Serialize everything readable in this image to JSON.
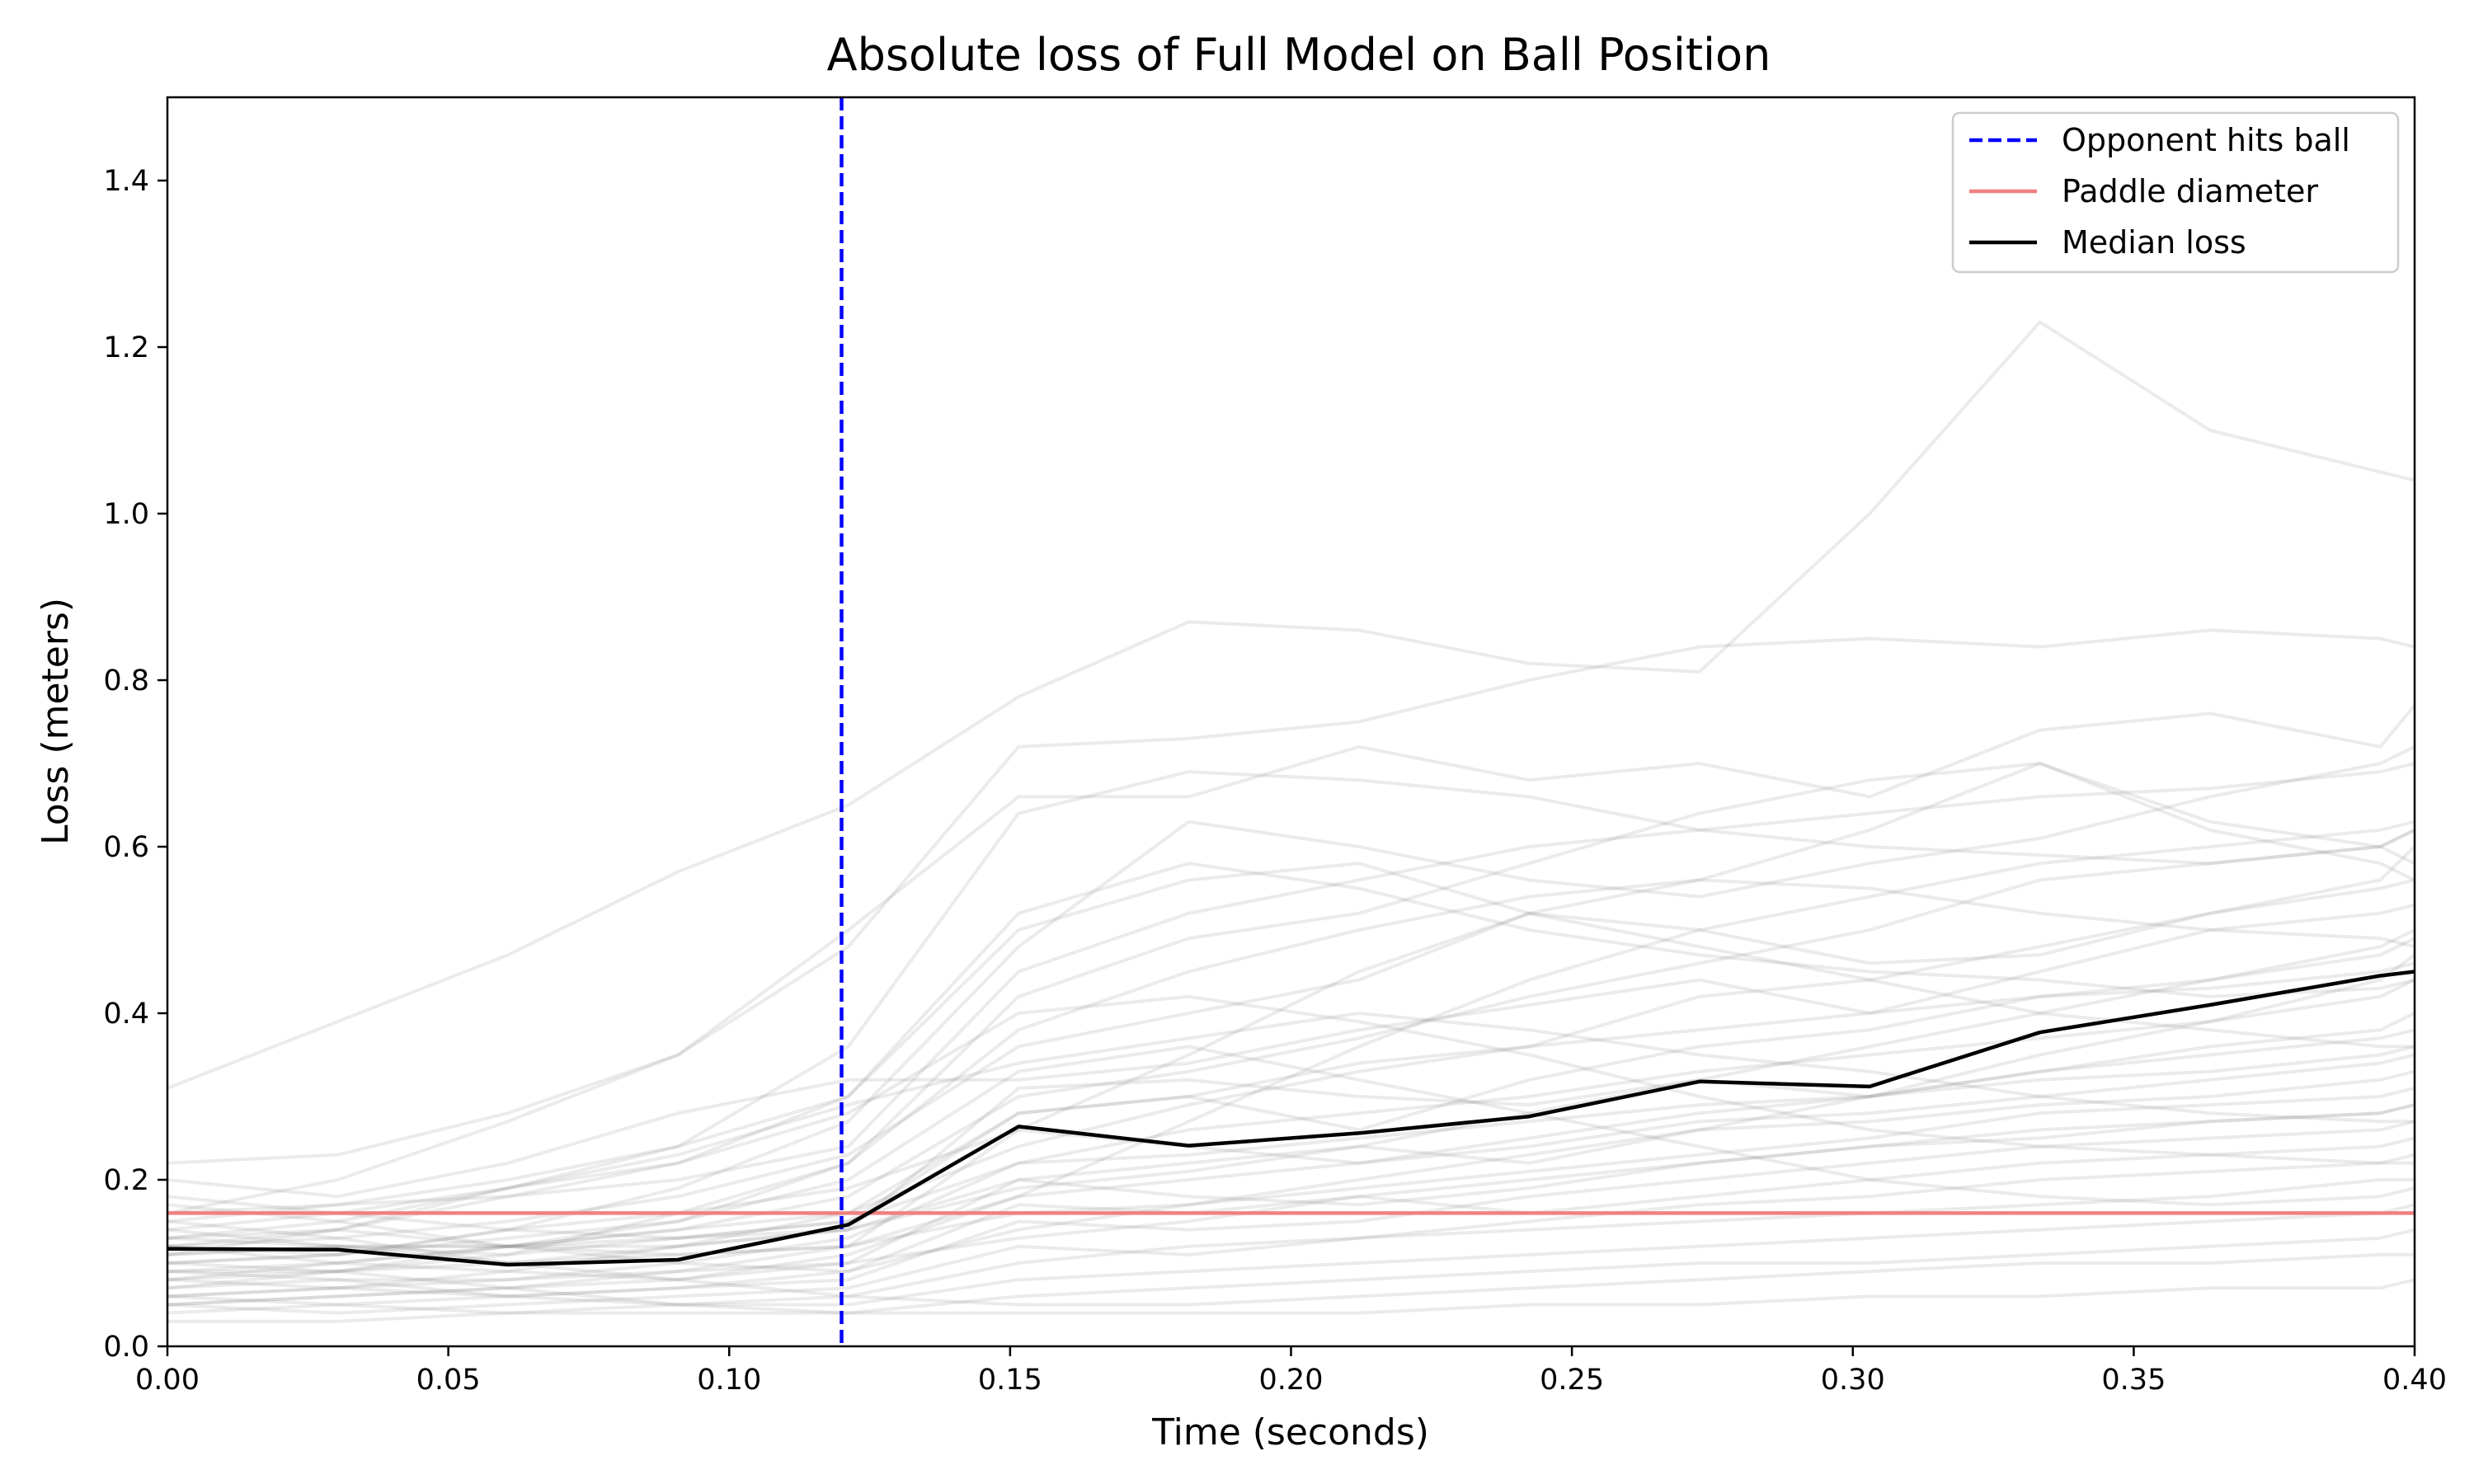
{
  "chart_data": {
    "type": "line",
    "title": "Absolute loss of Full Model on Ball Position",
    "xlabel": "Time (seconds)",
    "ylabel": "Loss (meters)",
    "xlim": [
      0.0,
      0.4
    ],
    "ylim": [
      0.0,
      1.5
    ],
    "xticks": [
      "0.00",
      "0.05",
      "0.10",
      "0.15",
      "0.20",
      "0.25",
      "0.30",
      "0.35",
      "0.40"
    ],
    "yticks": [
      "0.0",
      "0.2",
      "0.4",
      "0.6",
      "0.8",
      "1.0",
      "1.2",
      "1.4"
    ],
    "grid": false,
    "legend_position": "top-right",
    "legend": [
      {
        "label": "Opponent hits ball",
        "color": "#0000ff",
        "style": "dashed"
      },
      {
        "label": "Paddle diameter",
        "color": "#f08080",
        "style": "solid"
      },
      {
        "label": "Median loss",
        "color": "#000000",
        "style": "solid"
      }
    ],
    "x": [
      0.0,
      0.0303,
      0.0606,
      0.0909,
      0.1212,
      0.1515,
      0.1818,
      0.2121,
      0.2424,
      0.2727,
      0.303,
      0.3333,
      0.3636,
      0.3939,
      0.4
    ],
    "median_loss": [
      0.117,
      0.116,
      0.098,
      0.104,
      0.146,
      0.264,
      0.241,
      0.256,
      0.276,
      0.318,
      0.312,
      0.377,
      0.41,
      0.445,
      0.45
    ],
    "opponent_hits_ball_x": 0.12,
    "paddle_diameter_y": 0.16,
    "trials": [
      [
        0.31,
        0.39,
        0.47,
        0.57,
        0.65,
        0.78,
        0.87,
        0.86,
        0.82,
        0.81,
        1.0,
        1.23,
        1.1,
        1.05,
        1.04
      ],
      [
        0.22,
        0.23,
        0.28,
        0.35,
        0.48,
        0.72,
        0.73,
        0.75,
        0.8,
        0.84,
        0.85,
        0.84,
        0.86,
        0.85,
        0.84
      ],
      [
        0.16,
        0.2,
        0.27,
        0.35,
        0.5,
        0.66,
        0.66,
        0.72,
        0.68,
        0.7,
        0.66,
        0.74,
        0.76,
        0.72,
        0.77
      ],
      [
        0.12,
        0.14,
        0.19,
        0.24,
        0.36,
        0.64,
        0.69,
        0.68,
        0.66,
        0.62,
        0.6,
        0.59,
        0.58,
        0.6,
        0.62
      ],
      [
        0.1,
        0.11,
        0.14,
        0.19,
        0.27,
        0.48,
        0.63,
        0.6,
        0.56,
        0.54,
        0.58,
        0.61,
        0.66,
        0.7,
        0.72
      ],
      [
        0.14,
        0.16,
        0.19,
        0.22,
        0.3,
        0.5,
        0.56,
        0.58,
        0.52,
        0.56,
        0.62,
        0.7,
        0.62,
        0.58,
        0.56
      ],
      [
        0.08,
        0.09,
        0.12,
        0.15,
        0.22,
        0.42,
        0.49,
        0.52,
        0.58,
        0.64,
        0.68,
        0.7,
        0.63,
        0.6,
        0.58
      ],
      [
        0.12,
        0.13,
        0.15,
        0.18,
        0.23,
        0.36,
        0.4,
        0.44,
        0.52,
        0.5,
        0.46,
        0.47,
        0.52,
        0.56,
        0.6
      ],
      [
        0.09,
        0.1,
        0.12,
        0.14,
        0.18,
        0.3,
        0.33,
        0.37,
        0.42,
        0.46,
        0.5,
        0.56,
        0.58,
        0.6,
        0.62
      ],
      [
        0.06,
        0.07,
        0.09,
        0.12,
        0.16,
        0.24,
        0.29,
        0.33,
        0.36,
        0.42,
        0.44,
        0.48,
        0.52,
        0.55,
        0.56
      ],
      [
        0.2,
        0.18,
        0.22,
        0.28,
        0.32,
        0.32,
        0.34,
        0.38,
        0.41,
        0.44,
        0.4,
        0.45,
        0.5,
        0.52,
        0.53
      ],
      [
        0.11,
        0.12,
        0.11,
        0.13,
        0.15,
        0.28,
        0.3,
        0.26,
        0.32,
        0.36,
        0.38,
        0.42,
        0.44,
        0.47,
        0.49
      ],
      [
        0.07,
        0.08,
        0.08,
        0.1,
        0.13,
        0.22,
        0.26,
        0.28,
        0.3,
        0.33,
        0.35,
        0.37,
        0.39,
        0.42,
        0.44
      ],
      [
        0.13,
        0.14,
        0.12,
        0.12,
        0.14,
        0.31,
        0.32,
        0.3,
        0.29,
        0.32,
        0.3,
        0.33,
        0.36,
        0.38,
        0.4
      ],
      [
        0.05,
        0.06,
        0.07,
        0.08,
        0.11,
        0.18,
        0.2,
        0.22,
        0.25,
        0.28,
        0.3,
        0.33,
        0.35,
        0.37,
        0.38
      ],
      [
        0.15,
        0.13,
        0.1,
        0.11,
        0.12,
        0.26,
        0.24,
        0.22,
        0.24,
        0.27,
        0.28,
        0.3,
        0.32,
        0.34,
        0.35
      ],
      [
        0.09,
        0.09,
        0.1,
        0.12,
        0.14,
        0.2,
        0.22,
        0.24,
        0.22,
        0.26,
        0.27,
        0.29,
        0.3,
        0.32,
        0.33
      ],
      [
        0.04,
        0.05,
        0.06,
        0.07,
        0.09,
        0.14,
        0.17,
        0.19,
        0.21,
        0.23,
        0.25,
        0.28,
        0.29,
        0.3,
        0.31
      ],
      [
        0.12,
        0.1,
        0.09,
        0.08,
        0.1,
        0.2,
        0.18,
        0.17,
        0.19,
        0.22,
        0.24,
        0.25,
        0.27,
        0.28,
        0.29
      ],
      [
        0.08,
        0.07,
        0.06,
        0.07,
        0.08,
        0.15,
        0.14,
        0.15,
        0.18,
        0.2,
        0.22,
        0.24,
        0.25,
        0.26,
        0.27
      ],
      [
        0.17,
        0.15,
        0.12,
        0.1,
        0.09,
        0.17,
        0.16,
        0.18,
        0.16,
        0.18,
        0.2,
        0.22,
        0.23,
        0.24,
        0.25
      ],
      [
        0.05,
        0.04,
        0.05,
        0.06,
        0.07,
        0.12,
        0.11,
        0.13,
        0.15,
        0.17,
        0.18,
        0.2,
        0.21,
        0.22,
        0.23
      ],
      [
        0.1,
        0.09,
        0.07,
        0.05,
        0.06,
        0.1,
        0.12,
        0.13,
        0.14,
        0.15,
        0.16,
        0.17,
        0.18,
        0.2,
        0.2
      ],
      [
        0.06,
        0.05,
        0.04,
        0.05,
        0.05,
        0.08,
        0.09,
        0.1,
        0.11,
        0.12,
        0.13,
        0.14,
        0.15,
        0.16,
        0.17
      ],
      [
        0.03,
        0.03,
        0.04,
        0.04,
        0.04,
        0.06,
        0.07,
        0.08,
        0.09,
        0.1,
        0.1,
        0.11,
        0.12,
        0.13,
        0.14
      ],
      [
        0.14,
        0.12,
        0.1,
        0.08,
        0.06,
        0.05,
        0.05,
        0.06,
        0.07,
        0.08,
        0.09,
        0.1,
        0.1,
        0.11,
        0.11
      ],
      [
        0.09,
        0.08,
        0.06,
        0.05,
        0.04,
        0.04,
        0.04,
        0.04,
        0.05,
        0.05,
        0.06,
        0.06,
        0.07,
        0.07,
        0.08
      ],
      [
        0.13,
        0.15,
        0.19,
        0.23,
        0.29,
        0.34,
        0.37,
        0.4,
        0.38,
        0.35,
        0.33,
        0.3,
        0.28,
        0.27,
        0.27
      ],
      [
        0.11,
        0.14,
        0.18,
        0.22,
        0.28,
        0.4,
        0.42,
        0.39,
        0.35,
        0.3,
        0.26,
        0.24,
        0.23,
        0.22,
        0.22
      ],
      [
        0.1,
        0.11,
        0.13,
        0.15,
        0.2,
        0.33,
        0.36,
        0.32,
        0.28,
        0.24,
        0.2,
        0.18,
        0.17,
        0.18,
        0.19
      ],
      [
        0.15,
        0.17,
        0.2,
        0.24,
        0.3,
        0.52,
        0.58,
        0.55,
        0.5,
        0.47,
        0.45,
        0.44,
        0.42,
        0.43,
        0.44
      ],
      [
        0.07,
        0.09,
        0.11,
        0.16,
        0.22,
        0.38,
        0.45,
        0.5,
        0.54,
        0.56,
        0.55,
        0.52,
        0.5,
        0.49,
        0.48
      ],
      [
        0.12,
        0.11,
        0.14,
        0.16,
        0.19,
        0.26,
        0.35,
        0.45,
        0.52,
        0.48,
        0.44,
        0.4,
        0.38,
        0.36,
        0.36
      ],
      [
        0.16,
        0.17,
        0.18,
        0.2,
        0.24,
        0.45,
        0.52,
        0.56,
        0.6,
        0.62,
        0.64,
        0.66,
        0.67,
        0.69,
        0.7
      ],
      [
        0.05,
        0.06,
        0.07,
        0.09,
        0.12,
        0.18,
        0.27,
        0.36,
        0.44,
        0.5,
        0.54,
        0.58,
        0.6,
        0.62,
        0.63
      ],
      [
        0.18,
        0.16,
        0.14,
        0.13,
        0.15,
        0.22,
        0.23,
        0.25,
        0.27,
        0.29,
        0.3,
        0.32,
        0.33,
        0.35,
        0.36
      ],
      [
        0.08,
        0.1,
        0.12,
        0.14,
        0.16,
        0.28,
        0.3,
        0.34,
        0.36,
        0.38,
        0.4,
        0.42,
        0.43,
        0.45,
        0.46
      ],
      [
        0.13,
        0.12,
        0.12,
        0.13,
        0.14,
        0.19,
        0.21,
        0.24,
        0.28,
        0.32,
        0.36,
        0.4,
        0.44,
        0.48,
        0.5
      ],
      [
        0.11,
        0.12,
        0.12,
        0.11,
        0.12,
        0.16,
        0.17,
        0.2,
        0.23,
        0.26,
        0.3,
        0.35,
        0.39,
        0.44,
        0.47
      ],
      [
        0.06,
        0.07,
        0.08,
        0.09,
        0.1,
        0.13,
        0.15,
        0.18,
        0.2,
        0.22,
        0.24,
        0.26,
        0.27,
        0.28,
        0.29
      ]
    ]
  }
}
